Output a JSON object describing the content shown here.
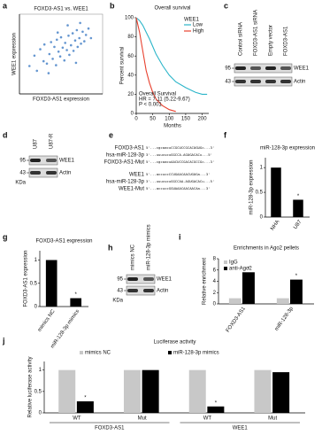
{
  "panel_labels": [
    "a",
    "b",
    "c",
    "d",
    "e",
    "f",
    "g",
    "h",
    "i",
    "j"
  ],
  "chart_data": [
    {
      "type": "scatter",
      "title": "FOXD3-AS1 vs. WEE1",
      "x_label": "FOXD3-AS1 expression",
      "y_label": "WEE1 expression",
      "color": "#3f7cc4",
      "xlim": [
        0,
        10
      ],
      "ylim": [
        0,
        10
      ],
      "x": [
        1.2,
        1.8,
        2.1,
        2.5,
        2.9,
        3.0,
        3.3,
        3.6,
        3.8,
        4.0,
        4.2,
        4.4,
        4.5,
        4.7,
        4.9,
        5.0,
        5.2,
        5.4,
        5.5,
        5.7,
        5.9,
        6.0,
        6.2,
        6.4,
        6.5,
        6.7,
        6.9,
        7.0,
        7.2,
        7.4,
        7.6,
        7.8,
        8.0,
        8.3,
        8.6,
        3.5,
        5.8,
        6.8,
        4.6,
        7.3
      ],
      "y": [
        3.5,
        4.8,
        2.9,
        5.6,
        4.1,
        6.2,
        3.8,
        5.0,
        6.5,
        4.4,
        5.9,
        3.6,
        6.8,
        5.3,
        4.7,
        7.1,
        5.8,
        4.2,
        6.4,
        5.5,
        7.3,
        4.9,
        6.1,
        7.6,
        5.4,
        6.7,
        8.0,
        5.9,
        7.0,
        6.3,
        7.8,
        6.6,
        7.4,
        8.2,
        7.0,
        2.6,
        8.6,
        3.9,
        7.7,
        8.9
      ]
    },
    {
      "type": "line",
      "title": "Overall survival",
      "x_label": "Months",
      "y_label": "Percent survival",
      "xlim": [
        0,
        220
      ],
      "ylim": [
        0,
        100
      ],
      "xticks": [
        0,
        50,
        100,
        150,
        200
      ],
      "yticks": [
        0,
        20,
        40,
        60,
        80,
        100
      ],
      "legend_title": "WEE1",
      "legend": "top-right",
      "annotations": [
        "Overall Survival",
        "HR = 7.11 (5.22-9.67)",
        "P < 0.001"
      ],
      "x": [
        0,
        10,
        20,
        30,
        40,
        50,
        60,
        80,
        100,
        120,
        150,
        180,
        200,
        215
      ],
      "series": [
        {
          "name": "Low",
          "color": "#2bb5c9",
          "values": [
            100,
            97,
            92,
            85,
            78,
            70,
            62,
            50,
            40,
            33,
            27,
            22,
            20,
            20
          ]
        },
        {
          "name": "High",
          "color": "#e8412f",
          "values": [
            100,
            85,
            65,
            45,
            32,
            22,
            15,
            8,
            4,
            2,
            null,
            null,
            null,
            null
          ]
        }
      ]
    },
    {
      "type": "bar",
      "title": "miR-128-3p expression",
      "y_label": "miR-128-3p expression",
      "categories": [
        "NHA",
        "U87"
      ],
      "values": [
        1,
        0.35
      ],
      "significance": [
        null,
        "*"
      ],
      "color": "#000000",
      "ylim": [
        0,
        1.2
      ],
      "yticks": [
        0,
        0.5,
        1
      ]
    },
    {
      "type": "bar",
      "title": "FOXD3-AS1 expression",
      "y_label": "FOXD3-AS1 expression",
      "categories": [
        "mimics NC",
        "miR-128-3p mimics"
      ],
      "values": [
        1,
        0.18
      ],
      "significance": [
        null,
        "*"
      ],
      "color": "#000000",
      "ylim": [
        0,
        1.2
      ],
      "yticks": [
        0,
        0.5,
        1
      ]
    },
    {
      "type": "grouped-bar",
      "title": "Enrichments in Ago2 pellets",
      "y_label": "Relative enrichment",
      "categories": [
        "FOXD3-AS1",
        "miR-128-3p"
      ],
      "ylim": [
        0,
        8
      ],
      "yticks": [
        0,
        2,
        4,
        6,
        8
      ],
      "legend": "top-left",
      "series": [
        {
          "name": "IgG",
          "color": "#c8c8c8",
          "values": [
            1,
            1
          ],
          "significance": [
            null,
            null
          ]
        },
        {
          "name": "anti-Ago2",
          "color": "#000000",
          "values": [
            5.6,
            4.3
          ],
          "significance": [
            "*",
            "*"
          ]
        }
      ]
    },
    {
      "type": "grouped-bar",
      "title": "Luciferase activity",
      "y_label": "Relative luciferase activity",
      "categories": [
        "WT",
        "Mut",
        "WT",
        "Mut"
      ],
      "groups": [
        "FOXD3-AS1",
        "WEE1"
      ],
      "ylim": [
        0,
        1.2
      ],
      "yticks": [
        0,
        0.5,
        1
      ],
      "legend": "top",
      "series": [
        {
          "name": "mimics NC",
          "color": "#c8c8c8",
          "values": [
            1,
            1,
            1,
            1
          ],
          "significance": [
            null,
            null,
            null,
            null
          ]
        },
        {
          "name": "miR-128-3p mimics",
          "color": "#000000",
          "values": [
            0.27,
            1,
            0.15,
            0.95
          ],
          "significance": [
            "*",
            null,
            "*",
            null
          ]
        }
      ]
    }
  ],
  "blots": [
    {
      "lanes": [
        "Control siRNA",
        "FOXD3-AS1 siRNA",
        "Empty vector",
        "FOXD3-AS1"
      ],
      "markers": [
        "95",
        "43"
      ],
      "bands": [
        "WEE1",
        "Actin"
      ]
    },
    {
      "lanes": [
        "U87",
        "U87-R"
      ],
      "markers": [
        "95",
        "43"
      ],
      "unit": "KDa",
      "bands": [
        "WEE1",
        "Actin"
      ]
    },
    {
      "lanes": [
        "mimics NC",
        "miR-128-3p mimics"
      ],
      "markers": [
        "95",
        "43"
      ],
      "unit": "KDa",
      "bands": [
        "WEE1",
        "Actin"
      ]
    }
  ],
  "sequences": [
    {
      "name": "FOXD3-AS1",
      "seq": "5'...cgcaacuCCGCUCCGCACUGUGc...3'"
    },
    {
      "name": "hsa-miR-128-3p",
      "seq": "3'...uuucucuGGCCA-AGUGACACu...5'"
    },
    {
      "name": "FOXD3-AS1-Mut",
      "seq": "5'...cgcaacuAACUCCGACACGCCGc...3'"
    },
    {
      "name": "WEE1",
      "seq": "5'...accuccCCUGAACAACUGUGa...3'"
    },
    {
      "name": "hsa-miR-128-3p",
      "seq": "3'...uuucucuGGCCAA-AGUGACACu...5'"
    },
    {
      "name": "WEE1-Mut",
      "seq": "5'...accuccGGUAAACAACAACAa...3'"
    }
  ]
}
